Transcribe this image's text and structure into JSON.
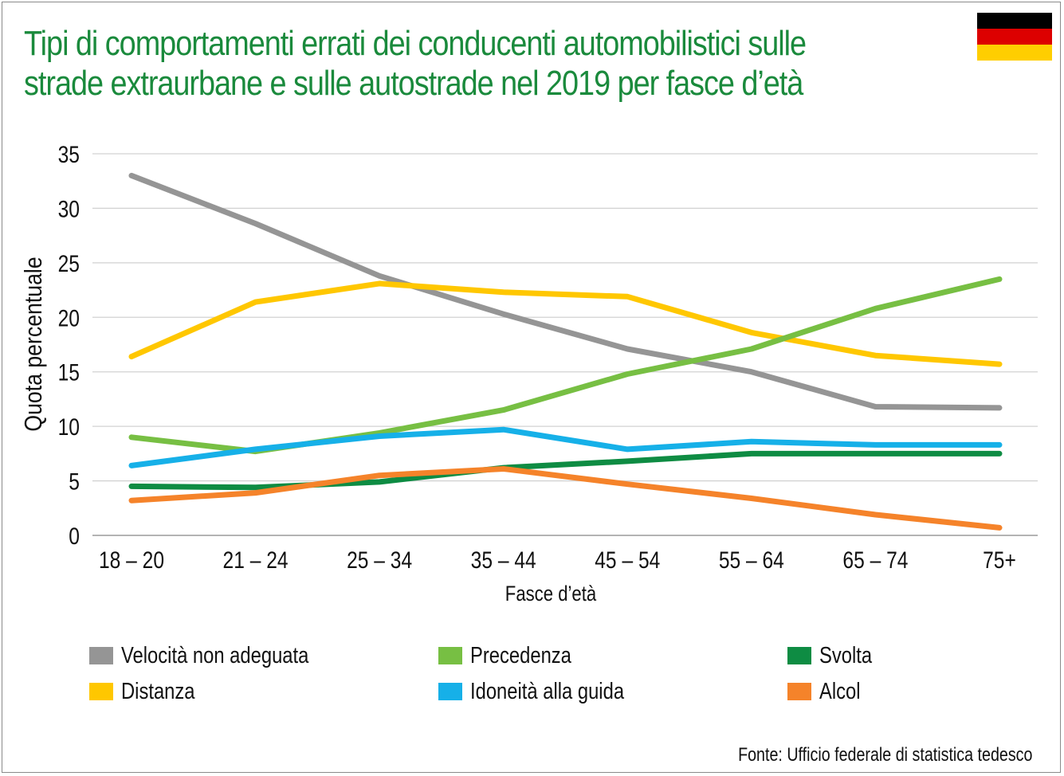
{
  "title_lines": [
    "Tipi di comportamenti errati dei conducenti automobilistici sulle",
    "strade extraurbane e sulle autostrade nel 2019 per fasce d’età"
  ],
  "flag": {
    "name": "germany-flag",
    "colors": [
      "#000000",
      "#dd0000",
      "#ffce00"
    ]
  },
  "source": "Fonte: Ufficio federale di statistica tedesco",
  "chart_data": {
    "type": "line",
    "xlabel": "Fasce d’età",
    "ylabel": "Quota percentuale",
    "ylim": [
      0,
      35
    ],
    "yticks": [
      0,
      5,
      10,
      15,
      20,
      25,
      30,
      35
    ],
    "grid": true,
    "legend_position": "bottom",
    "categories": [
      "18 – 20",
      "21 – 24",
      "25 – 34",
      "35 – 44",
      "45 – 54",
      "55 – 64",
      "65 – 74",
      "75+"
    ],
    "series": [
      {
        "name": "Velocità non adeguata",
        "color": "#959595",
        "values": [
          33.0,
          28.6,
          23.8,
          20.3,
          17.1,
          15.0,
          11.8,
          11.7
        ]
      },
      {
        "name": "Distanza",
        "color": "#ffc700",
        "values": [
          16.4,
          21.4,
          23.1,
          22.3,
          21.9,
          18.6,
          16.5,
          15.7
        ]
      },
      {
        "name": "Precedenza",
        "color": "#77bf43",
        "values": [
          9.0,
          7.7,
          9.4,
          11.5,
          14.8,
          17.1,
          20.8,
          23.5
        ]
      },
      {
        "name": "Idoneità alla guida",
        "color": "#16b0e8",
        "values": [
          6.4,
          7.9,
          9.1,
          9.7,
          7.9,
          8.6,
          8.3,
          8.3
        ]
      },
      {
        "name": "Svolta",
        "color": "#0e8c43",
        "values": [
          4.5,
          4.4,
          4.9,
          6.2,
          6.8,
          7.5,
          7.5,
          7.5
        ]
      },
      {
        "name": "Alcol",
        "color": "#f5832a",
        "values": [
          3.2,
          3.9,
          5.5,
          6.1,
          4.7,
          3.4,
          1.9,
          0.7
        ]
      }
    ]
  }
}
